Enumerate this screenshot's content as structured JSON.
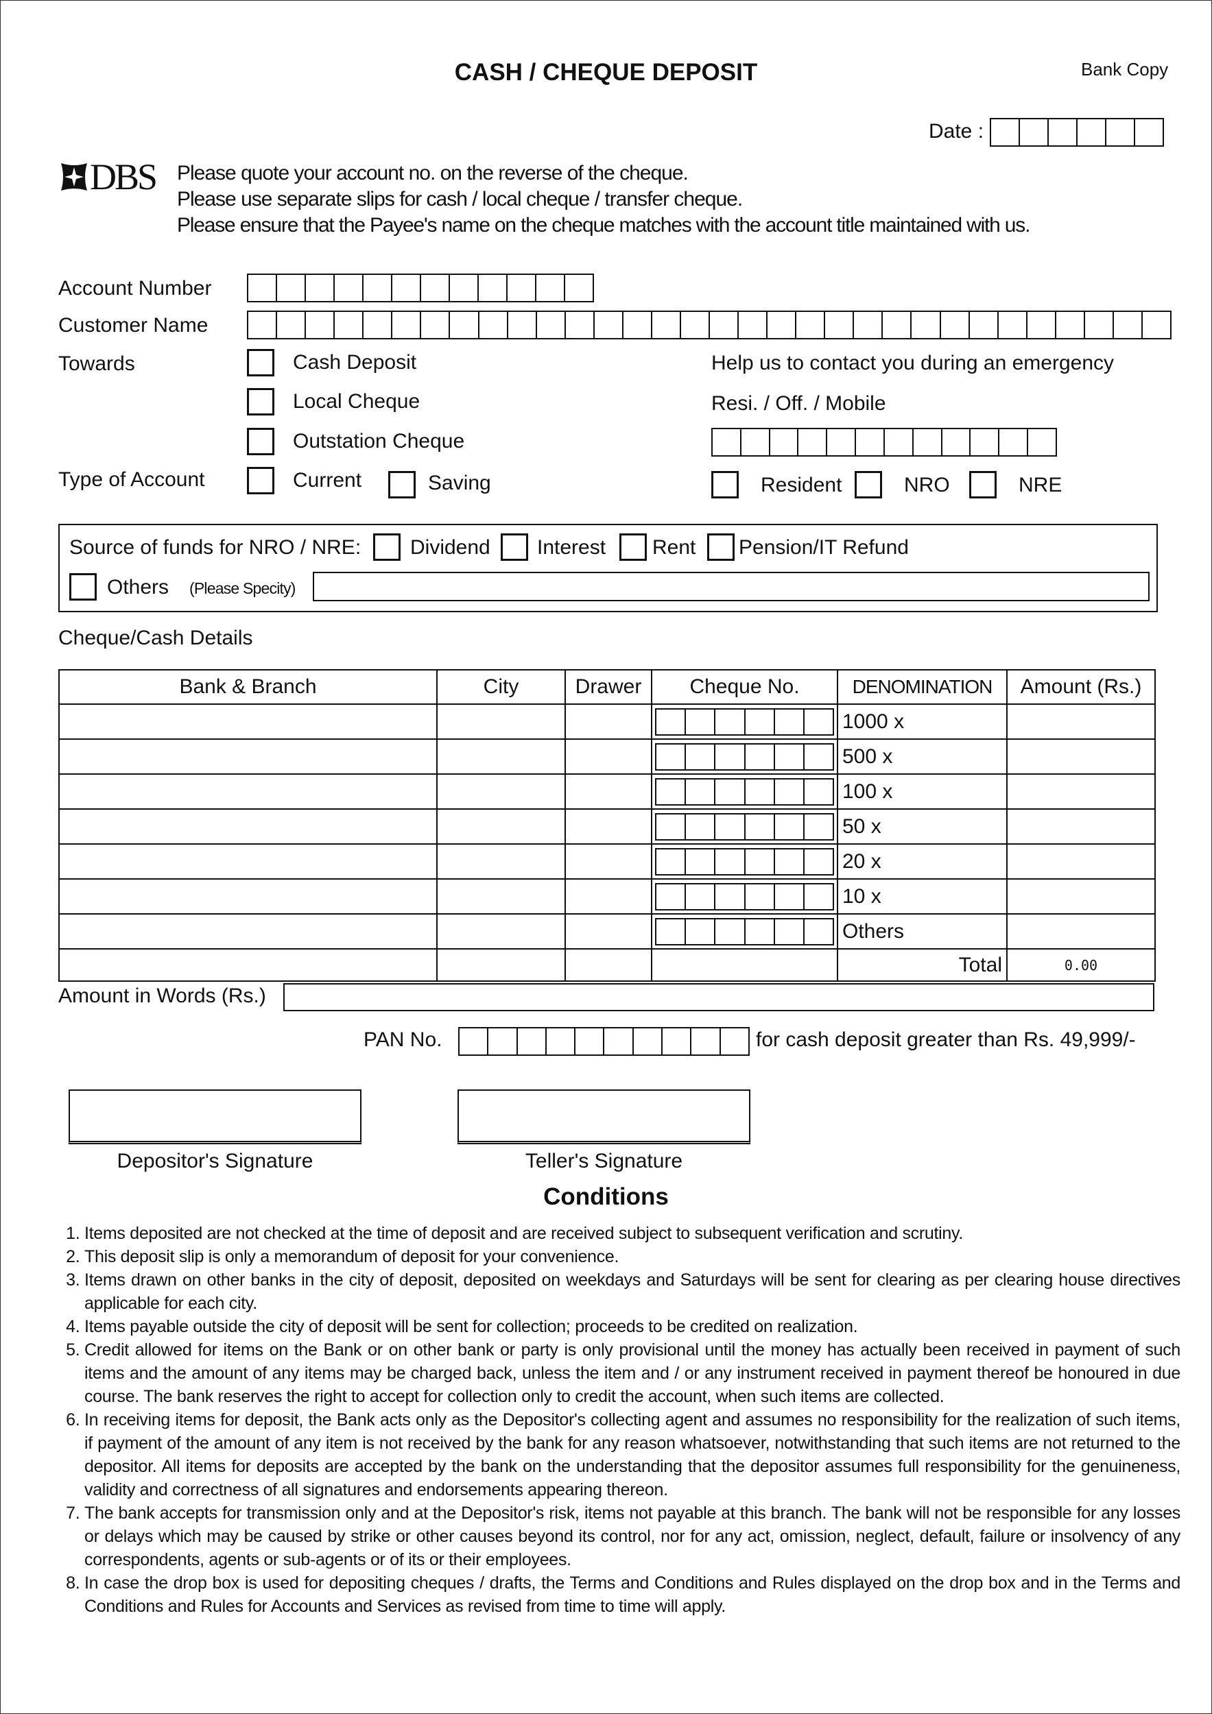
{
  "header": {
    "title": "CASH / CHEQUE DEPOSIT",
    "copy_label": "Bank Copy",
    "date_label": "Date :",
    "logo_text": "DBS"
  },
  "instructions": [
    "Please quote your account no. on the reverse of the cheque.",
    "Please use separate slips for cash / local cheque / transfer cheque.",
    "Please ensure that the Payee's name on the cheque matches with the account title maintained with us."
  ],
  "fields": {
    "account_number_label": "Account Number",
    "customer_name_label": "Customer Name",
    "towards_label": "Towards",
    "towards_options": [
      "Cash Deposit",
      "Local Cheque",
      "Outstation Cheque"
    ],
    "type_of_account_label": "Type of Account",
    "account_types": [
      "Current",
      "Saving"
    ],
    "emergency_label": "Help us to contact you during an emergency",
    "phone_label": "Resi. / Off. / Mobile",
    "residency_options": [
      "Resident",
      "NRO",
      "NRE"
    ]
  },
  "source_of_funds": {
    "label": "Source of funds for NRO / NRE:",
    "options": [
      "Dividend",
      "Interest",
      "Rent",
      "Pension/IT Refund"
    ],
    "others_label": "Others",
    "specify_label": "(Please Specity)"
  },
  "details": {
    "section_label": "Cheque/Cash Details",
    "columns": [
      "Bank & Branch",
      "City",
      "Drawer",
      "Cheque No.",
      "DENOMINATION",
      "Amount (Rs.)"
    ],
    "denominations": [
      "1000 x",
      "500 x",
      "100 x",
      "50 x",
      "20 x",
      "10 x",
      "Others"
    ],
    "total_label": "Total",
    "total_value": "0.00"
  },
  "amount_words_label": "Amount in Words (Rs.)",
  "pan": {
    "label": "PAN No.",
    "note": "for cash deposit greater than Rs. 49,999/-"
  },
  "signatures": {
    "depositor": "Depositor's Signature",
    "teller": "Teller's Signature"
  },
  "conditions": {
    "title": "Conditions",
    "items": [
      "Items deposited are not checked at the time of deposit and are received subject to subsequent verification and scrutiny.",
      "This deposit slip is only a memorandum of deposit for your convenience.",
      "Items drawn on other banks in the city of deposit, deposited on weekdays and Saturdays will be sent for clearing as per clearing house directives applicable for each city.",
      "Items payable outside the city of deposit will be sent for collection; proceeds to be credited on realization.",
      "Credit allowed for items on the Bank or on other bank or party is only provisional until the money has actually been received in payment of such items and the amount of any items may be charged back, unless the item and / or any instrument received in payment thereof be honoured in due course. The bank reserves the right to accept for collection only to credit the account, when such items are collected.",
      "In receiving items for deposit, the Bank acts only as the Depositor's collecting agent and assumes no responsibility for the realization of such items, if payment of the amount of any item is not received by the bank for any reason whatsoever, notwithstanding that such items are not returned to the depositor. All items for deposits are accepted by the bank on the understanding that the depositor assumes full responsibility for the genuineness, validity and correctness of all signatures and endorsements appearing thereon.",
      "The bank accepts for transmission only and at the Depositor's risk, items not payable at this branch. The bank will not be responsible for any losses or delays which may be caused by strike or other causes beyond its control, nor for any act, omission, neglect, default, failure or insolvency of any correspondents, agents or sub-agents or of its or their employees.",
      "In case the drop box is used for depositing cheques / drafts, the Terms and Conditions and Rules displayed on the drop box and in the Terms and Conditions and Rules for Accounts and Services as revised from time to time will apply."
    ]
  }
}
